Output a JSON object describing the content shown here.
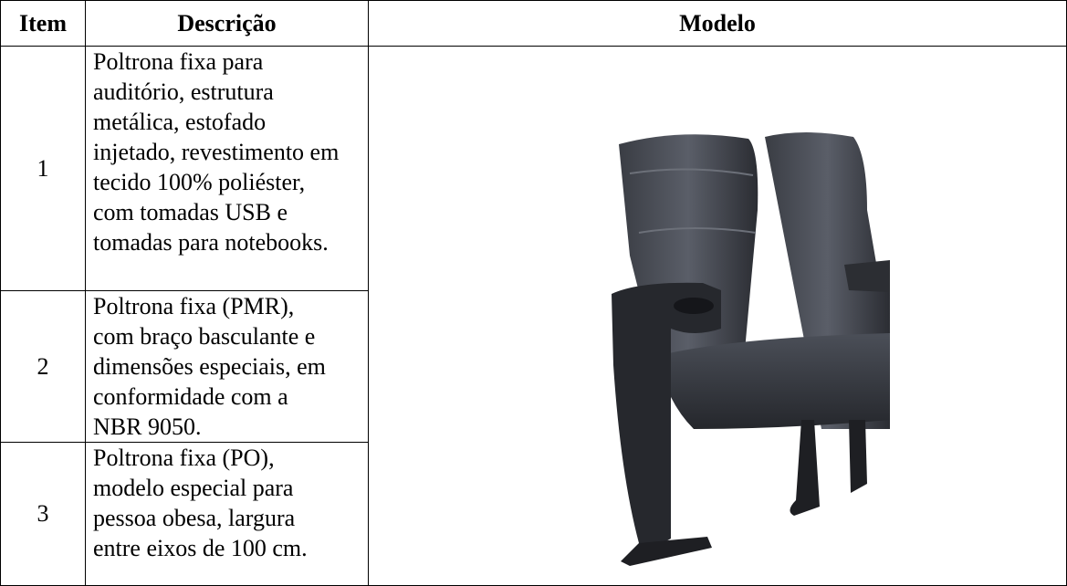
{
  "table": {
    "header": [
      "Item",
      "Descrição",
      "Modelo"
    ],
    "rows": [
      {
        "item": "1",
        "description": [
          "Poltrona fixa para",
          "auditório, estrutura",
          "metálica, estofado",
          "injetado, revestimento em",
          "tecido 100% poliéster,",
          "com tomadas USB e",
          "tomadas para notebooks."
        ]
      },
      {
        "item": "2",
        "description": [
          "Poltrona fixa (PMR),",
          "com braço basculante e",
          "dimensões especiais, em",
          "conformidade com a",
          "NBR 9050."
        ]
      },
      {
        "item": "3",
        "description": [
          "Poltrona fixa (PO),",
          "modelo especial para",
          "pessoa obesa, largura",
          "entre eixos de 100 cm."
        ]
      }
    ]
  }
}
